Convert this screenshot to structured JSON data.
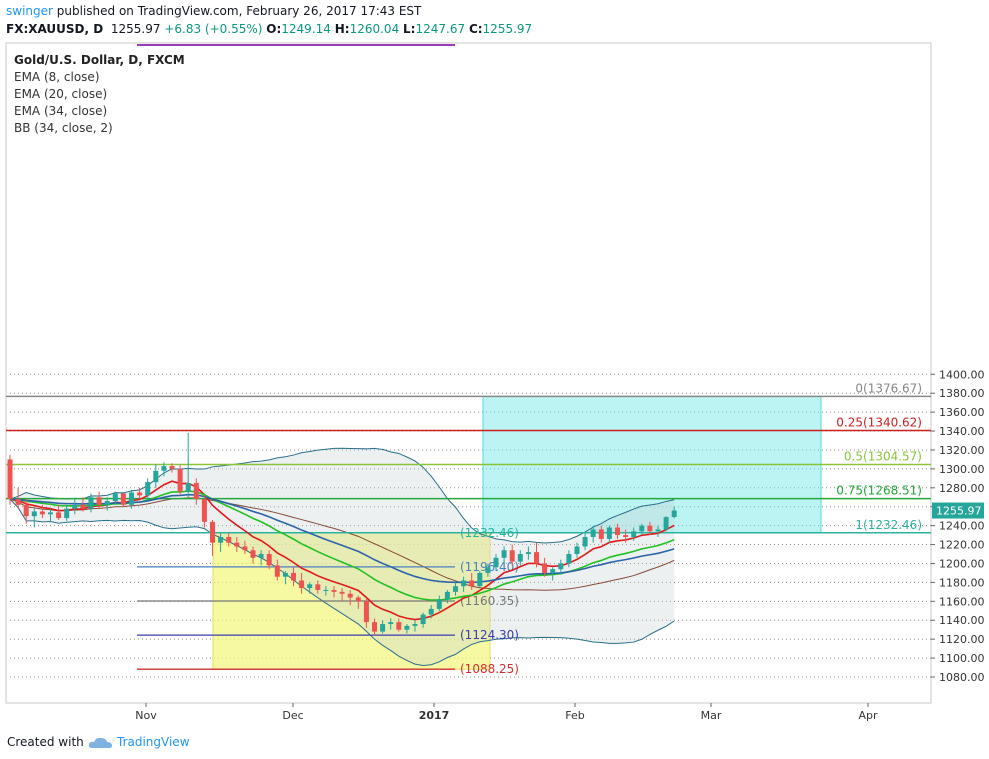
{
  "header": {
    "username": "swinger",
    "published": "published on TradingView.com, February 26, 2017 17:43 EST",
    "symbol": "FX:XAUUSD, D",
    "last": "1255.97",
    "change": "+6.83 (+0.55%)",
    "open_label": "O:",
    "open": "1249.14",
    "high_label": "H:",
    "high": "1260.04",
    "low_label": "L:",
    "low": "1247.67",
    "close_label": "C:",
    "close": "1255.97"
  },
  "legend": {
    "title": "Gold/U.S. Dollar, D, FXCM",
    "items": [
      "EMA (8, close)",
      "EMA (20, close)",
      "EMA (34, close)",
      "BB (34, close, 2)"
    ]
  },
  "footer": {
    "created": "Created with",
    "brand": "TradingView"
  },
  "chart_data": {
    "type": "candlestick",
    "title": "Gold/U.S. Dollar, D, FXCM",
    "price_axis": {
      "min": 1070,
      "max": 1410,
      "ticks": [
        1080,
        1100,
        1120,
        1140,
        1160,
        1180,
        1200,
        1220,
        1240,
        1260,
        1280,
        1300,
        1320,
        1340,
        1360,
        1380,
        1400
      ],
      "labels": [
        "1080.00",
        "1100.00",
        "1120.00",
        "1140.00",
        "1160.00",
        "1180.00",
        "1200.00",
        "1220.00",
        "1240.00",
        "1260.00",
        "1280.00",
        "1300.00",
        "1320.00",
        "1340.00",
        "1360.00",
        "1380.00",
        "1400.00"
      ]
    },
    "time_axis": {
      "labels": [
        "Nov",
        "Dec",
        "2017",
        "Feb",
        "Mar",
        "Apr"
      ]
    },
    "last_price_label": "1255.97",
    "candles_ohlc": [
      [
        1310,
        1315,
        1262,
        1268
      ],
      [
        1268,
        1280,
        1258,
        1262
      ],
      [
        1262,
        1268,
        1242,
        1250
      ],
      [
        1250,
        1258,
        1238,
        1255
      ],
      [
        1255,
        1262,
        1248,
        1252
      ],
      [
        1252,
        1258,
        1244,
        1254
      ],
      [
        1254,
        1262,
        1246,
        1248
      ],
      [
        1248,
        1262,
        1245,
        1258
      ],
      [
        1258,
        1268,
        1252,
        1262
      ],
      [
        1262,
        1270,
        1255,
        1258
      ],
      [
        1258,
        1274,
        1254,
        1270
      ],
      [
        1270,
        1276,
        1258,
        1262
      ],
      [
        1262,
        1270,
        1256,
        1266
      ],
      [
        1266,
        1276,
        1262,
        1274
      ],
      [
        1274,
        1272,
        1260,
        1262
      ],
      [
        1262,
        1278,
        1258,
        1275
      ],
      [
        1275,
        1280,
        1268,
        1272
      ],
      [
        1272,
        1290,
        1268,
        1286
      ],
      [
        1286,
        1305,
        1280,
        1298
      ],
      [
        1298,
        1307,
        1292,
        1303
      ],
      [
        1303,
        1306,
        1296,
        1300
      ],
      [
        1300,
        1304,
        1272,
        1276
      ],
      [
        1276,
        1338,
        1270,
        1285
      ],
      [
        1285,
        1290,
        1262,
        1268
      ],
      [
        1268,
        1272,
        1238,
        1244
      ],
      [
        1244,
        1246,
        1208,
        1222
      ],
      [
        1222,
        1232,
        1212,
        1228
      ],
      [
        1228,
        1232,
        1218,
        1222
      ],
      [
        1222,
        1228,
        1212,
        1218
      ],
      [
        1218,
        1224,
        1210,
        1214
      ],
      [
        1214,
        1218,
        1200,
        1206
      ],
      [
        1206,
        1214,
        1198,
        1210
      ],
      [
        1210,
        1214,
        1194,
        1198
      ],
      [
        1198,
        1204,
        1182,
        1186
      ],
      [
        1186,
        1192,
        1178,
        1190
      ],
      [
        1190,
        1196,
        1176,
        1182
      ],
      [
        1182,
        1190,
        1168,
        1174
      ],
      [
        1174,
        1180,
        1168,
        1178
      ],
      [
        1178,
        1182,
        1168,
        1172
      ],
      [
        1172,
        1176,
        1166,
        1172
      ],
      [
        1172,
        1176,
        1164,
        1170
      ],
      [
        1170,
        1174,
        1160,
        1168
      ],
      [
        1168,
        1172,
        1156,
        1164
      ],
      [
        1164,
        1166,
        1152,
        1160
      ],
      [
        1160,
        1164,
        1132,
        1138
      ],
      [
        1138,
        1142,
        1124,
        1128
      ],
      [
        1128,
        1140,
        1126,
        1136
      ],
      [
        1136,
        1142,
        1130,
        1138
      ],
      [
        1138,
        1142,
        1128,
        1130
      ],
      [
        1130,
        1136,
        1126,
        1134
      ],
      [
        1134,
        1140,
        1128,
        1136
      ],
      [
        1136,
        1148,
        1132,
        1146
      ],
      [
        1146,
        1156,
        1142,
        1152
      ],
      [
        1152,
        1166,
        1150,
        1162
      ],
      [
        1162,
        1172,
        1158,
        1170
      ],
      [
        1170,
        1180,
        1166,
        1176
      ],
      [
        1176,
        1186,
        1170,
        1182
      ],
      [
        1182,
        1190,
        1172,
        1176
      ],
      [
        1176,
        1192,
        1174,
        1190
      ],
      [
        1190,
        1200,
        1186,
        1196
      ],
      [
        1196,
        1210,
        1192,
        1206
      ],
      [
        1206,
        1218,
        1200,
        1214
      ],
      [
        1214,
        1220,
        1198,
        1202
      ],
      [
        1202,
        1214,
        1198,
        1210
      ],
      [
        1210,
        1218,
        1204,
        1212
      ],
      [
        1212,
        1222,
        1196,
        1200
      ],
      [
        1200,
        1206,
        1186,
        1190
      ],
      [
        1190,
        1196,
        1182,
        1194
      ],
      [
        1194,
        1204,
        1188,
        1200
      ],
      [
        1200,
        1214,
        1196,
        1210
      ],
      [
        1210,
        1222,
        1206,
        1218
      ],
      [
        1218,
        1232,
        1214,
        1228
      ],
      [
        1228,
        1240,
        1222,
        1236
      ],
      [
        1236,
        1240,
        1222,
        1226
      ],
      [
        1226,
        1240,
        1222,
        1238
      ],
      [
        1238,
        1242,
        1226,
        1230
      ],
      [
        1230,
        1236,
        1222,
        1228
      ],
      [
        1228,
        1238,
        1224,
        1234
      ],
      [
        1234,
        1242,
        1230,
        1240
      ],
      [
        1240,
        1244,
        1230,
        1234
      ],
      [
        1234,
        1240,
        1228,
        1236
      ],
      [
        1236,
        1250,
        1234,
        1249
      ],
      [
        1249.14,
        1260.04,
        1247.67,
        1255.97
      ]
    ],
    "indicators": [
      {
        "name": "EMA (8, close)",
        "color": "#e01919"
      },
      {
        "name": "EMA (20, close)",
        "color": "#22c022"
      },
      {
        "name": "EMA (34, close)",
        "color": "#2b63a8"
      },
      {
        "name": "BB (34, close, 2)",
        "color": "#2a6f8a"
      }
    ],
    "fibonacci_left": [
      {
        "label": "(1124.30)",
        "price": 1124.3,
        "color": "#3b3baf"
      },
      {
        "label": "(1160.35)",
        "price": 1160.35,
        "color": "#777777"
      },
      {
        "label": "(1196.40)",
        "price": 1196.4,
        "color": "#4a7fc1"
      },
      {
        "label": "(1232.46)",
        "price": 1232.46,
        "color": "#2bb3a0"
      },
      {
        "label": "(1088.25)",
        "price": 1088.25,
        "color": "#d03030"
      }
    ],
    "fibonacci_right": [
      {
        "label": "0(1376.67)",
        "price": 1376.67,
        "color": "#888888"
      },
      {
        "label": "0.25(1340.62)",
        "price": 1340.62,
        "color": "#cc2020"
      },
      {
        "label": "0.5(1304.57)",
        "price": 1304.57,
        "color": "#8ac43a"
      },
      {
        "label": "0.75(1268.51)",
        "price": 1268.51,
        "color": "#22a83a"
      },
      {
        "label": "1(1232.46)",
        "price": 1232.46,
        "color": "#2bb3a0"
      }
    ],
    "colors": {
      "up": "#26a69a",
      "down": "#ef5350",
      "yellow_box": "#f3f77a",
      "cyan_box": "#7ae8e8",
      "bb_fill": "#c8d4d6"
    }
  }
}
